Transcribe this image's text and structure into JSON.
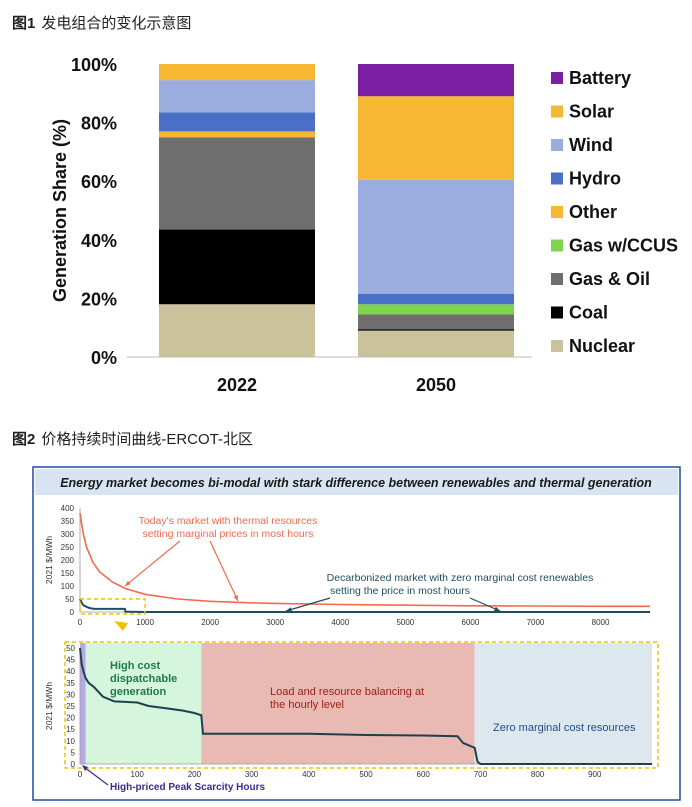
{
  "figure1": {
    "label": "图1",
    "caption": "发电组合的变化示意图"
  },
  "figure2": {
    "label": "图2",
    "caption": "价格持续时间曲线-ERCOT-北区"
  },
  "chart_data": [
    {
      "type": "bar",
      "stacked": true,
      "categories": [
        "2022",
        "2050"
      ],
      "ylabel": "Generation Share (%)",
      "ylim": [
        0,
        100
      ],
      "yticks": [
        "0%",
        "20%",
        "40%",
        "60%",
        "80%",
        "100%"
      ],
      "legend_position": "right",
      "series": [
        {
          "name": "Nuclear",
          "color": "#c9c29a",
          "values": [
            18,
            9
          ]
        },
        {
          "name": "Coal",
          "color": "#000000",
          "values": [
            25.5,
            0.5
          ]
        },
        {
          "name": "Gas & Oil",
          "color": "#6e6e6e",
          "values": [
            31.5,
            5
          ]
        },
        {
          "name": "Gas w/CCUS",
          "color": "#7fd34e",
          "values": [
            0,
            3.5
          ]
        },
        {
          "name": "Other",
          "color": "#f7b733",
          "values": [
            2,
            0
          ]
        },
        {
          "name": "Hydro",
          "color": "#4a6fc7",
          "values": [
            6.5,
            3.5
          ]
        },
        {
          "name": "Wind",
          "color": "#9badde",
          "values": [
            11,
            39
          ]
        },
        {
          "name": "Solar",
          "color": "#f7b733",
          "values": [
            5.5,
            28.5
          ]
        },
        {
          "name": "Battery",
          "color": "#7a1fa2",
          "values": [
            0,
            11
          ]
        }
      ]
    },
    {
      "type": "line",
      "title": "Energy market becomes bi-modal with stark difference between renewables and thermal generation",
      "panels": [
        {
          "ylabel": "2021 $/MWh",
          "xlim": [
            0,
            8760
          ],
          "ylim": [
            0,
            400
          ],
          "xticks": [
            0,
            1000,
            2000,
            3000,
            4000,
            5000,
            6000,
            7000,
            8000
          ],
          "yticks": [
            0,
            50,
            100,
            150,
            200,
            250,
            300,
            350,
            400
          ],
          "series": [
            {
              "color": "#f26b4f",
              "x": [
                0,
                50,
                100,
                200,
                300,
                500,
                700,
                1000,
                1500,
                2000,
                2500,
                3000,
                4000,
                5000,
                6000,
                7000,
                8000,
                8760
              ],
              "y": [
                380,
                300,
                250,
                190,
                155,
                115,
                90,
                68,
                50,
                41,
                36,
                33,
                29,
                26,
                24,
                23,
                22,
                22
              ]
            },
            {
              "color": "#1f4e5f",
              "x": [
                0,
                20,
                40,
                60,
                100,
                150,
                220,
                400,
                690,
                700,
                1000,
                2000,
                3000,
                4000,
                5000,
                6000,
                7000,
                8000,
                8760
              ],
              "y": [
                50,
                40,
                30,
                25,
                20,
                15,
                12,
                12,
                12,
                1,
                0,
                0,
                0,
                0,
                0,
                0,
                0,
                0,
                0
              ]
            }
          ],
          "annotations": [
            {
              "text": "Today's market with thermal resources",
              "color": "#f26b4f"
            },
            {
              "text": "setting marginal prices in most hours",
              "color": "#f26b4f"
            },
            {
              "text": "Decarbonized market with zero marginal cost renewables",
              "color": "#1f4e5f"
            },
            {
              "text": "setting the price in most hours",
              "color": "#1f4e5f"
            }
          ]
        },
        {
          "ylabel": "2021 $/MWh",
          "xlim": [
            0,
            1000
          ],
          "ylim": [
            0,
            50
          ],
          "xticks": [
            0,
            100,
            200,
            300,
            400,
            500,
            600,
            700,
            800,
            900
          ],
          "yticks": [
            0,
            5,
            10,
            15,
            20,
            25,
            30,
            35,
            40,
            45,
            50
          ],
          "series": [
            {
              "color": "#1f3f4f",
              "x": [
                0,
                3,
                6,
                10,
                15,
                25,
                40,
                60,
                100,
                120,
                150,
                180,
                200,
                212,
                215,
                300,
                400,
                500,
                600,
                660,
                670,
                680,
                690,
                695,
                700,
                1000
              ],
              "y": [
                50,
                43,
                40,
                37,
                35,
                33,
                29,
                27,
                26.5,
                25,
                24,
                23,
                22,
                21,
                13,
                13,
                13,
                12.5,
                12.3,
                12,
                9,
                8,
                7,
                1,
                0,
                0
              ]
            }
          ],
          "regions": [
            {
              "x": [
                0,
                10
              ],
              "color": "#b9a8e6",
              "label": "High-priced Peak Scarcity Hours"
            },
            {
              "x": [
                10,
                212
              ],
              "color": "#d6f5dd",
              "label_lines": [
                "High cost",
                "dispatchable",
                "generation"
              ]
            },
            {
              "x": [
                212,
                690
              ],
              "color": "#e9b9b3",
              "label_lines": [
                "Load and resource balancing at",
                "the hourly level"
              ]
            },
            {
              "x": [
                690,
                1000
              ],
              "color": "#dde7ee",
              "label_lines": [
                "Zero marginal cost resources"
              ]
            }
          ]
        }
      ]
    }
  ]
}
